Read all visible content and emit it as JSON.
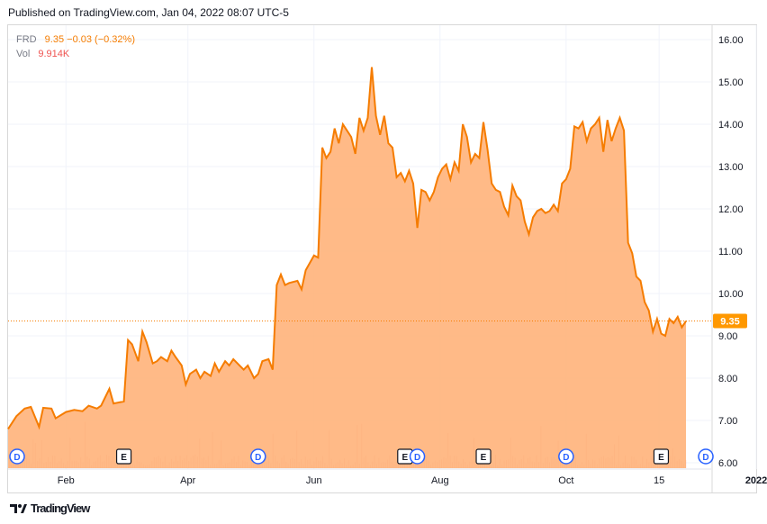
{
  "published": "Published on TradingView.com, Jan 04, 2022 08:07 UTC-5",
  "legend": {
    "symbol": "FRD",
    "price": "9.35",
    "change": "−0.03 (−0.32%)",
    "vol_label": "Vol",
    "vol_value": "9.914K"
  },
  "footer": {
    "logo_text": "TradingView",
    "logo_icon": "tradingview-logo-icon"
  },
  "price_tag": "9.35",
  "colors": {
    "line": "#f57c00",
    "fill": "#ffb27a",
    "vol": "#ef9a9a",
    "tag": "#ff9800",
    "event": "#2962ff"
  },
  "chart_data": {
    "type": "area",
    "symbol": "FRD",
    "last_value": 9.35,
    "ylim": [
      6.0,
      16.0
    ],
    "yticks": [
      "6.00",
      "7.00",
      "8.00",
      "9.00",
      "10.00",
      "11.00",
      "12.00",
      "13.00",
      "14.00",
      "15.00",
      "16.00"
    ],
    "xticks": [
      {
        "label": "Feb",
        "x": "2021-02-01"
      },
      {
        "label": "Apr",
        "x": "2021-04-01"
      },
      {
        "label": "Jun",
        "x": "2021-06-01"
      },
      {
        "label": "Aug",
        "x": "2021-08-01"
      },
      {
        "label": "Oct",
        "x": "2021-10-01"
      },
      {
        "label": "15",
        "x": "2021-11-15"
      },
      {
        "label": "2022",
        "x": "2022-01-01"
      }
    ],
    "series": [
      {
        "values": [
          [
            "2021-01-04",
            6.8
          ],
          [
            "2021-01-08",
            7.1
          ],
          [
            "2021-01-12",
            7.28
          ],
          [
            "2021-01-15",
            7.32
          ],
          [
            "2021-01-19",
            6.85
          ],
          [
            "2021-01-21",
            7.3
          ],
          [
            "2021-01-25",
            7.28
          ],
          [
            "2021-01-27",
            7.05
          ],
          [
            "2021-02-01",
            7.2
          ],
          [
            "2021-02-05",
            7.25
          ],
          [
            "2021-02-09",
            7.22
          ],
          [
            "2021-02-12",
            7.35
          ],
          [
            "2021-02-16",
            7.28
          ],
          [
            "2021-02-18",
            7.35
          ],
          [
            "2021-02-22",
            7.75
          ],
          [
            "2021-02-24",
            7.4
          ],
          [
            "2021-03-01",
            7.45
          ],
          [
            "2021-03-03",
            8.9
          ],
          [
            "2021-03-05",
            8.8
          ],
          [
            "2021-03-08",
            8.4
          ],
          [
            "2021-03-10",
            9.1
          ],
          [
            "2021-03-12",
            8.85
          ],
          [
            "2021-03-15",
            8.35
          ],
          [
            "2021-03-17",
            8.4
          ],
          [
            "2021-03-19",
            8.5
          ],
          [
            "2021-03-22",
            8.4
          ],
          [
            "2021-03-24",
            8.65
          ],
          [
            "2021-03-26",
            8.5
          ],
          [
            "2021-03-29",
            8.3
          ],
          [
            "2021-03-31",
            7.85
          ],
          [
            "2021-04-02",
            8.1
          ],
          [
            "2021-04-05",
            8.2
          ],
          [
            "2021-04-07",
            8.0
          ],
          [
            "2021-04-09",
            8.15
          ],
          [
            "2021-04-12",
            8.05
          ],
          [
            "2021-04-14",
            8.35
          ],
          [
            "2021-04-16",
            8.15
          ],
          [
            "2021-04-19",
            8.4
          ],
          [
            "2021-04-21",
            8.3
          ],
          [
            "2021-04-23",
            8.45
          ],
          [
            "2021-04-26",
            8.3
          ],
          [
            "2021-04-28",
            8.2
          ],
          [
            "2021-04-30",
            8.3
          ],
          [
            "2021-05-03",
            8.0
          ],
          [
            "2021-05-05",
            8.1
          ],
          [
            "2021-05-07",
            8.4
          ],
          [
            "2021-05-10",
            8.45
          ],
          [
            "2021-05-12",
            8.2
          ],
          [
            "2021-05-14",
            10.2
          ],
          [
            "2021-05-16",
            10.45
          ],
          [
            "2021-05-18",
            10.2
          ],
          [
            "2021-05-20",
            10.25
          ],
          [
            "2021-05-24",
            10.3
          ],
          [
            "2021-05-26",
            10.1
          ],
          [
            "2021-05-28",
            10.55
          ],
          [
            "2021-06-01",
            10.9
          ],
          [
            "2021-06-03",
            10.85
          ],
          [
            "2021-06-05",
            13.45
          ],
          [
            "2021-06-07",
            13.2
          ],
          [
            "2021-06-09",
            13.35
          ],
          [
            "2021-06-11",
            13.9
          ],
          [
            "2021-06-13",
            13.55
          ],
          [
            "2021-06-15",
            14.0
          ],
          [
            "2021-06-17",
            13.85
          ],
          [
            "2021-06-19",
            13.7
          ],
          [
            "2021-06-21",
            13.3
          ],
          [
            "2021-06-23",
            14.15
          ],
          [
            "2021-06-25",
            13.85
          ],
          [
            "2021-06-27",
            14.15
          ],
          [
            "2021-06-29",
            15.35
          ],
          [
            "2021-07-01",
            14.2
          ],
          [
            "2021-07-03",
            13.75
          ],
          [
            "2021-07-05",
            14.2
          ],
          [
            "2021-07-07",
            13.55
          ],
          [
            "2021-07-09",
            13.45
          ],
          [
            "2021-07-11",
            12.75
          ],
          [
            "2021-07-13",
            12.85
          ],
          [
            "2021-07-15",
            12.65
          ],
          [
            "2021-07-17",
            12.9
          ],
          [
            "2021-07-19",
            12.6
          ],
          [
            "2021-07-21",
            11.55
          ],
          [
            "2021-07-23",
            12.45
          ],
          [
            "2021-07-25",
            12.4
          ],
          [
            "2021-07-27",
            12.2
          ],
          [
            "2021-07-29",
            12.4
          ],
          [
            "2021-07-31",
            12.75
          ],
          [
            "2021-08-02",
            12.95
          ],
          [
            "2021-08-04",
            13.05
          ],
          [
            "2021-08-06",
            12.7
          ],
          [
            "2021-08-08",
            13.1
          ],
          [
            "2021-08-10",
            12.9
          ],
          [
            "2021-08-12",
            14.0
          ],
          [
            "2021-08-14",
            13.7
          ],
          [
            "2021-08-16",
            13.1
          ],
          [
            "2021-08-18",
            13.3
          ],
          [
            "2021-08-20",
            13.2
          ],
          [
            "2021-08-22",
            14.05
          ],
          [
            "2021-08-24",
            13.4
          ],
          [
            "2021-08-26",
            12.6
          ],
          [
            "2021-08-28",
            12.45
          ],
          [
            "2021-08-30",
            12.4
          ],
          [
            "2021-09-01",
            12.05
          ],
          [
            "2021-09-03",
            11.85
          ],
          [
            "2021-09-05",
            12.55
          ],
          [
            "2021-09-07",
            12.3
          ],
          [
            "2021-09-09",
            12.2
          ],
          [
            "2021-09-11",
            11.7
          ],
          [
            "2021-09-13",
            11.4
          ],
          [
            "2021-09-15",
            11.8
          ],
          [
            "2021-09-17",
            11.95
          ],
          [
            "2021-09-19",
            12.0
          ],
          [
            "2021-09-21",
            11.9
          ],
          [
            "2021-09-23",
            11.95
          ],
          [
            "2021-09-25",
            12.1
          ],
          [
            "2021-09-27",
            11.95
          ],
          [
            "2021-09-29",
            12.6
          ],
          [
            "2021-10-01",
            12.7
          ],
          [
            "2021-10-03",
            12.95
          ],
          [
            "2021-10-05",
            13.95
          ],
          [
            "2021-10-07",
            13.9
          ],
          [
            "2021-10-09",
            14.05
          ],
          [
            "2021-10-11",
            13.6
          ],
          [
            "2021-10-13",
            13.9
          ],
          [
            "2021-10-15",
            14.0
          ],
          [
            "2021-10-17",
            14.15
          ],
          [
            "2021-10-19",
            13.35
          ],
          [
            "2021-10-21",
            14.1
          ],
          [
            "2021-10-23",
            13.6
          ],
          [
            "2021-10-25",
            13.9
          ],
          [
            "2021-10-27",
            14.15
          ],
          [
            "2021-10-29",
            13.85
          ],
          [
            "2021-10-31",
            11.2
          ],
          [
            "2021-11-02",
            10.95
          ],
          [
            "2021-11-04",
            10.4
          ],
          [
            "2021-11-06",
            10.3
          ],
          [
            "2021-11-08",
            9.8
          ],
          [
            "2021-11-10",
            9.6
          ],
          [
            "2021-11-12",
            9.1
          ],
          [
            "2021-11-14",
            9.4
          ],
          [
            "2021-11-16",
            9.05
          ],
          [
            "2021-11-18",
            9.0
          ],
          [
            "2021-11-20",
            9.4
          ],
          [
            "2021-11-22",
            9.3
          ],
          [
            "2021-11-24",
            9.45
          ],
          [
            "2021-11-26",
            9.2
          ],
          [
            "2021-11-28",
            9.35
          ]
        ]
      }
    ],
    "events": [
      {
        "type": "D",
        "date": "2021-01-04"
      },
      {
        "type": "E",
        "date": "2021-03-01"
      },
      {
        "type": "D",
        "date": "2021-05-05"
      },
      {
        "type": "E",
        "date": "2021-07-15"
      },
      {
        "type": "D",
        "date": "2021-07-21"
      },
      {
        "type": "E",
        "date": "2021-08-22"
      },
      {
        "type": "D",
        "date": "2021-10-01"
      },
      {
        "type": "E",
        "date": "2021-11-16"
      },
      {
        "type": "D",
        "date": "2022-01-03"
      }
    ]
  }
}
